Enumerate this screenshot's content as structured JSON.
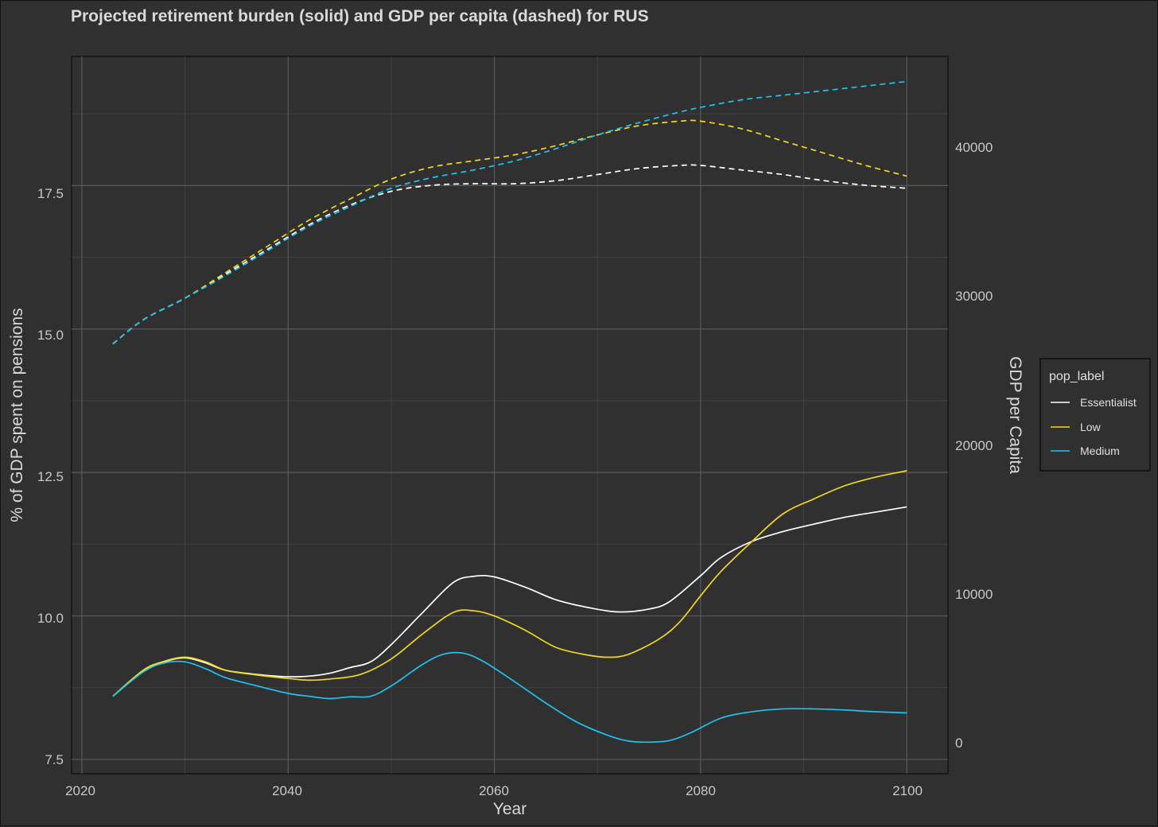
{
  "chart_data": {
    "type": "line",
    "title": "Projected retirement burden (solid) and GDP per capita (dashed) for RUS",
    "xlabel": "Year",
    "ylabel_left": "% of GDP spent on pensions",
    "ylabel_right": "GDP per Capita",
    "xlim": [
      2019,
      2104
    ],
    "ylim_left": [
      7.25,
      19.75
    ],
    "ylim_right": [
      -2170,
      44840
    ],
    "x_ticks": [
      "2020",
      "2040",
      "2060",
      "2080",
      "2100"
    ],
    "y_left_ticks": [
      "7.5",
      "10.0",
      "12.5",
      "15.0",
      "17.5"
    ],
    "y_right_ticks": [
      "0",
      "10000",
      "20000",
      "30000",
      "40000"
    ],
    "legend": {
      "title": "pop_label",
      "placement": "right",
      "entries": [
        "Essentialist",
        "Low",
        "Medium"
      ]
    },
    "series": [
      {
        "name": "Essentialist",
        "color": "#ffffff",
        "style": "solid",
        "axis": "left",
        "x": [
          2023,
          2026,
          2028,
          2030,
          2032,
          2034,
          2037,
          2040,
          2042,
          2044,
          2046,
          2048,
          2050,
          2053,
          2056,
          2058,
          2060,
          2063,
          2066,
          2069,
          2072,
          2075,
          2077,
          2080,
          2082,
          2085,
          2088,
          2091,
          2094,
          2097,
          2100
        ],
        "values": [
          8.6,
          9.05,
          9.2,
          9.27,
          9.18,
          9.05,
          8.98,
          8.94,
          8.95,
          9.0,
          9.1,
          9.2,
          9.5,
          10.05,
          10.58,
          10.69,
          10.68,
          10.5,
          10.28,
          10.15,
          10.07,
          10.12,
          10.25,
          10.7,
          11.02,
          11.3,
          11.47,
          11.6,
          11.72,
          11.81,
          11.9
        ]
      },
      {
        "name": "Low",
        "color": "#f5d81d",
        "style": "solid",
        "axis": "left",
        "x": [
          2023,
          2026,
          2028,
          2030,
          2032,
          2034,
          2037,
          2040,
          2042,
          2044,
          2047,
          2050,
          2053,
          2056,
          2058,
          2060,
          2063,
          2066,
          2069,
          2071,
          2073,
          2076,
          2078,
          2080,
          2082,
          2085,
          2088,
          2091,
          2094,
          2097,
          2100
        ],
        "values": [
          8.6,
          9.06,
          9.21,
          9.28,
          9.2,
          9.05,
          8.97,
          8.91,
          8.88,
          8.9,
          8.98,
          9.25,
          9.68,
          10.06,
          10.09,
          10.0,
          9.75,
          9.45,
          9.32,
          9.28,
          9.33,
          9.6,
          9.9,
          10.35,
          10.78,
          11.3,
          11.78,
          12.04,
          12.27,
          12.42,
          12.53
        ]
      },
      {
        "name": "Medium",
        "color": "#1ec3f0",
        "style": "solid",
        "axis": "left",
        "x": [
          2023,
          2026,
          2028,
          2030,
          2032,
          2034,
          2037,
          2040,
          2042,
          2044,
          2046,
          2048,
          2050,
          2053,
          2055,
          2057,
          2059,
          2062,
          2065,
          2068,
          2071,
          2073,
          2075,
          2077,
          2079,
          2082,
          2085,
          2088,
          2091,
          2094,
          2097,
          2100
        ],
        "values": [
          8.6,
          9.03,
          9.18,
          9.2,
          9.08,
          8.92,
          8.78,
          8.65,
          8.6,
          8.56,
          8.59,
          8.6,
          8.78,
          9.15,
          9.33,
          9.35,
          9.2,
          8.85,
          8.48,
          8.15,
          7.92,
          7.82,
          7.8,
          7.83,
          7.96,
          8.22,
          8.33,
          8.38,
          8.38,
          8.36,
          8.33,
          8.31
        ]
      },
      {
        "name": "Essentialist",
        "color": "#ffffff",
        "style": "dashed",
        "axis": "right",
        "x": [
          2023,
          2026,
          2030,
          2034,
          2038,
          2042,
          2046,
          2050,
          2054,
          2058,
          2062,
          2066,
          2070,
          2074,
          2078,
          2080,
          2084,
          2088,
          2092,
          2096,
          2100
        ],
        "values": [
          26000,
          27600,
          29000,
          30600,
          32200,
          33800,
          35100,
          36000,
          36400,
          36500,
          36500,
          36700,
          37100,
          37500,
          37700,
          37700,
          37400,
          37100,
          36700,
          36400,
          36200
        ]
      },
      {
        "name": "Low",
        "color": "#f5d81d",
        "style": "dashed",
        "axis": "right",
        "x": [
          2023,
          2026,
          2030,
          2034,
          2038,
          2042,
          2046,
          2050,
          2054,
          2058,
          2062,
          2066,
          2070,
          2074,
          2078,
          2080,
          2084,
          2088,
          2092,
          2096,
          2100
        ],
        "values": [
          26000,
          27600,
          29000,
          30700,
          32400,
          34100,
          35500,
          36800,
          37600,
          38000,
          38400,
          39000,
          39700,
          40300,
          40600,
          40600,
          40100,
          39300,
          38500,
          37700,
          37000
        ]
      },
      {
        "name": "Medium",
        "color": "#1ec3f0",
        "style": "dashed",
        "axis": "right",
        "x": [
          2023,
          2026,
          2030,
          2034,
          2038,
          2042,
          2046,
          2050,
          2054,
          2058,
          2062,
          2066,
          2070,
          2074,
          2078,
          2080,
          2084,
          2088,
          2092,
          2096,
          2100
        ],
        "values": [
          26000,
          27600,
          29000,
          30500,
          32100,
          33700,
          35000,
          36200,
          36900,
          37400,
          38000,
          38800,
          39700,
          40500,
          41200,
          41500,
          42000,
          42300,
          42600,
          42900,
          43200
        ]
      }
    ]
  }
}
